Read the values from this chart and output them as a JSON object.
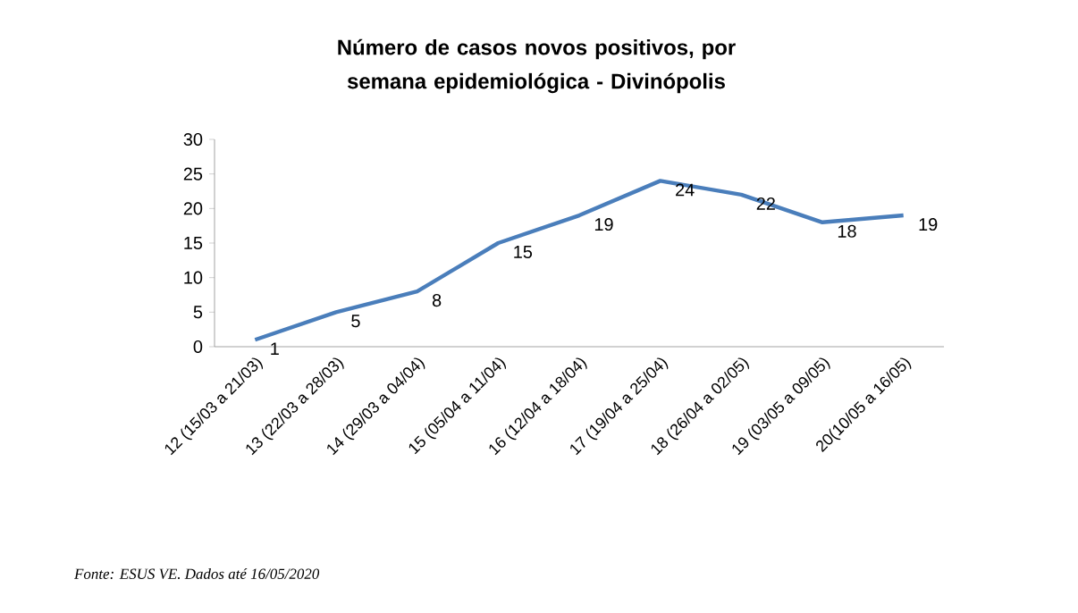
{
  "chart_data": {
    "type": "line",
    "title": "Número de casos novos positivos, por semana epidemiológica - Divinópolis",
    "categories": [
      "12 (15/03 a 21/03)",
      "13 (22/03 a 28/03)",
      "14 (29/03 a 04/04)",
      "15 (05/04 a 11/04)",
      "16 (12/04 a 18/04)",
      "17 (19/04 a 25/04)",
      "18 (26/04 a 02/05)",
      "19 (03/05 a 09/05)",
      "20(10/05 a 16/05)"
    ],
    "values": [
      1,
      5,
      8,
      15,
      19,
      24,
      22,
      18,
      19
    ],
    "color": "#4a7ebb",
    "ylim": [
      0,
      30
    ],
    "yticks": [
      0,
      5,
      10,
      15,
      20,
      25,
      30
    ],
    "data_labels": true,
    "annotations": [
      "Fonte: ESUS VE. Dados até 16/05/2020"
    ]
  }
}
